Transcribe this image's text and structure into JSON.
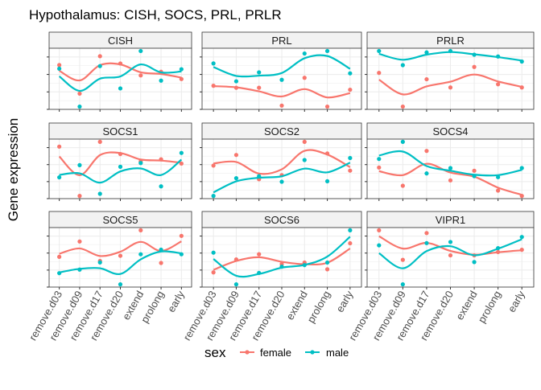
{
  "title": "Hypothalamus: CISH, SOCS, PRL, PRLR",
  "ylabel": "Gene expression",
  "legend": {
    "title": "sex",
    "items": [
      {
        "label": "female",
        "color": "#F8766D"
      },
      {
        "label": "male",
        "color": "#00BFC4"
      }
    ]
  },
  "chart_data": {
    "type": "scatter",
    "categories": [
      "remove.d03",
      "remove.d09",
      "remove.d17",
      "remove.d20",
      "extend",
      "prolong",
      "early"
    ],
    "grid": true,
    "legend_position": "bottom",
    "panels": [
      {
        "name": "CISH",
        "female": [
          0.75,
          0.2,
          0.92,
          0.78,
          0.55,
          0.62,
          0.48
        ],
        "male": [
          0.68,
          -0.05,
          0.73,
          0.3,
          1.02,
          0.45,
          0.67
        ]
      },
      {
        "name": "PRL",
        "female": [
          0.3,
          0.26,
          0.26,
          -0.1,
          0.46,
          -0.12,
          0.22
        ],
        "male": [
          0.75,
          0.39,
          0.57,
          0.42,
          0.95,
          1.0,
          0.55
        ]
      },
      {
        "name": "PRLR",
        "female": [
          0.52,
          -0.22,
          0.38,
          0.2,
          0.65,
          0.27,
          0.2
        ],
        "male": [
          1.0,
          0.69,
          0.97,
          1.0,
          0.92,
          0.88,
          0.77
        ]
      },
      {
        "name": "SOCS1",
        "female": [
          0.93,
          0.0,
          1.02,
          0.79,
          0.65,
          0.69,
          0.61
        ],
        "male": [
          0.35,
          0.58,
          0.04,
          0.55,
          0.62,
          0.18,
          0.81
        ]
      },
      {
        "name": "SOCS2",
        "female": [
          0.55,
          0.76,
          0.28,
          0.36,
          1.02,
          0.79,
          0.45
        ],
        "male": [
          -0.05,
          0.3,
          0.34,
          0.23,
          0.66,
          0.24,
          0.7
        ]
      },
      {
        "name": "SOCS4",
        "female": [
          0.56,
          0.22,
          0.87,
          0.32,
          0.5,
          0.13,
          0.03
        ],
        "male": [
          0.72,
          1.04,
          0.45,
          0.55,
          0.4,
          0.38,
          0.55
        ]
      },
      {
        "name": "SOCS5",
        "female": [
          0.48,
          0.78,
          0.4,
          0.5,
          1.0,
          0.36,
          0.89
        ],
        "male": [
          0.16,
          0.23,
          0.37,
          -0.06,
          0.53,
          0.62,
          0.53
        ]
      },
      {
        "name": "SOCS6",
        "female": [
          0.19,
          0.44,
          0.54,
          0.35,
          0.38,
          0.25,
          0.75
        ],
        "male": [
          0.57,
          -0.04,
          0.18,
          0.3,
          0.33,
          0.38,
          1.0
        ]
      },
      {
        "name": "VIPR1",
        "female": [
          0.97,
          0.44,
          0.92,
          0.52,
          0.52,
          0.58,
          0.62
        ],
        "male": [
          0.7,
          0.0,
          0.74,
          0.76,
          0.4,
          0.65,
          0.85
        ]
      }
    ]
  }
}
